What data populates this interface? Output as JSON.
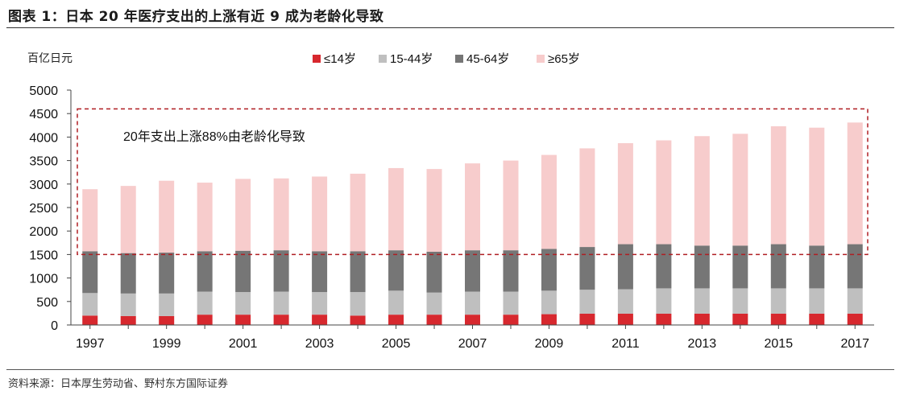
{
  "title": "图表 1：日本 20 年医疗支出的上涨有近 9 成为老龄化导致",
  "source": "资料来源：日本厚生劳动省、野村东方国际证券",
  "colors": {
    "age_0_14": "#d7282e",
    "age_15_44": "#bfbfbf",
    "age_45_64": "#767676",
    "age_65_plus": "#f7cccc",
    "annotation_box": "#b01e23"
  },
  "chart_data": {
    "type": "bar",
    "stacked": true,
    "unit_label": "百亿日元",
    "categories": [
      "1997",
      "1998",
      "1999",
      "2000",
      "2001",
      "2002",
      "2003",
      "2004",
      "2005",
      "2006",
      "2007",
      "2008",
      "2009",
      "2010",
      "2011",
      "2012",
      "2013",
      "2014",
      "2015",
      "2016",
      "2017"
    ],
    "x_tick_labels": [
      "1997",
      "1999",
      "2001",
      "2003",
      "2005",
      "2007",
      "2009",
      "2011",
      "2013",
      "2015",
      "2017"
    ],
    "ylim": [
      0,
      5000
    ],
    "y_ticks": [
      0,
      500,
      1000,
      1500,
      2000,
      2500,
      3000,
      3500,
      4000,
      4500,
      5000
    ],
    "grid": false,
    "legend_position": "top",
    "series": [
      {
        "name": "≤14岁",
        "values": [
          200,
          190,
          190,
          220,
          220,
          220,
          220,
          200,
          220,
          220,
          220,
          220,
          230,
          240,
          240,
          240,
          240,
          240,
          240,
          240,
          240
        ]
      },
      {
        "name": "15-44岁",
        "values": [
          480,
          480,
          480,
          490,
          480,
          490,
          480,
          500,
          510,
          470,
          490,
          490,
          500,
          510,
          520,
          540,
          540,
          540,
          540,
          540,
          540
        ]
      },
      {
        "name": "45-64岁",
        "values": [
          890,
          860,
          870,
          860,
          880,
          880,
          870,
          870,
          860,
          870,
          880,
          880,
          890,
          910,
          960,
          940,
          910,
          910,
          940,
          910,
          940
        ]
      },
      {
        "name": "≥65岁",
        "values": [
          1320,
          1430,
          1530,
          1460,
          1530,
          1530,
          1590,
          1650,
          1750,
          1760,
          1850,
          1910,
          2000,
          2100,
          2150,
          2210,
          2330,
          2380,
          2510,
          2510,
          2590
        ]
      }
    ],
    "annotation": {
      "text": "20年支出上涨88%由老龄化导致",
      "box_y_range": [
        1500,
        4600
      ]
    }
  }
}
